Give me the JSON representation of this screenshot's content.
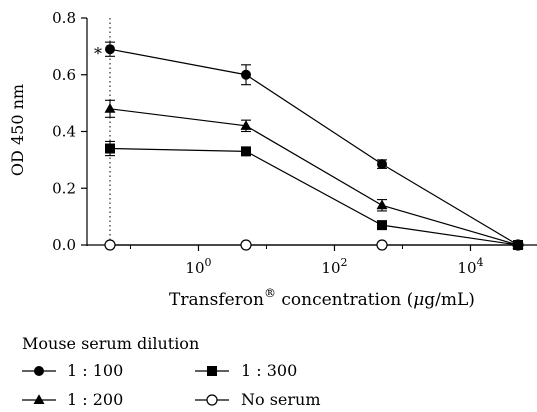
{
  "chart_data": {
    "type": "line",
    "title": "",
    "ylabel": "OD 450 nm",
    "xlabel": {
      "text": "Transferon",
      "superscript": "®",
      "suffix_pre": " concentration (",
      "mu": "μ",
      "suffix_post": "g/mL)"
    },
    "x_scale": "log",
    "x_positions": [
      0.05,
      5,
      500,
      50000
    ],
    "x_ticks": [
      {
        "value": 1,
        "base": "10",
        "exp": "0"
      },
      {
        "value": 100,
        "base": "10",
        "exp": "2"
      },
      {
        "value": 10000,
        "base": "10",
        "exp": "4"
      }
    ],
    "ylim": [
      0,
      0.8
    ],
    "y_ticks": [
      "0.0",
      "0.2",
      "0.4",
      "0.6",
      "0.8"
    ],
    "reference_line_x": 0.05,
    "annotation": {
      "text": "*",
      "x": 0.05,
      "y": 0.69
    },
    "legend_title": "Mouse serum dilution",
    "series": [
      {
        "name": "1 : 100",
        "marker": "circle-filled",
        "values": [
          0.69,
          0.6,
          0.285,
          0.0
        ],
        "errors": [
          0.025,
          0.035,
          0.015,
          0.0
        ]
      },
      {
        "name": "1 : 200",
        "marker": "triangle-filled",
        "values": [
          0.48,
          0.42,
          0.14,
          0.0
        ],
        "errors": [
          0.03,
          0.02,
          0.02,
          0.0
        ]
      },
      {
        "name": "1 : 300",
        "marker": "square-filled",
        "values": [
          0.34,
          0.33,
          0.07,
          0.0
        ],
        "errors": [
          0.025,
          0.012,
          0.01,
          0.0
        ]
      },
      {
        "name": "No serum",
        "marker": "circle-open",
        "values": [
          0.0,
          0.0,
          0.0,
          0.0
        ],
        "errors": [
          0,
          0,
          0,
          0
        ]
      }
    ]
  }
}
